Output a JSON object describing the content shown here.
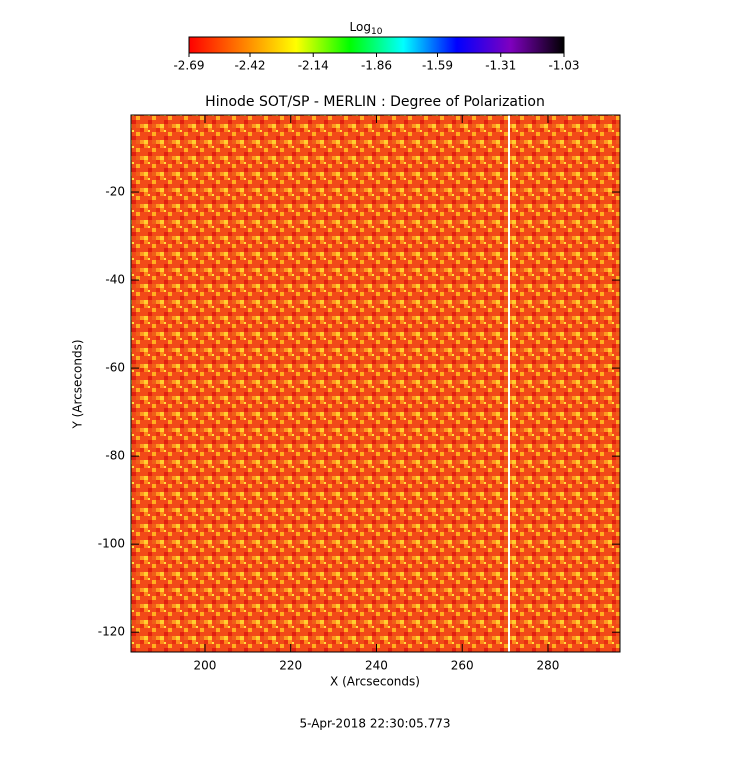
{
  "chart_data": {
    "type": "heatmap",
    "title": "Hinode SOT/SP - MERLIN : Degree of Polarization",
    "x_label": "X (Arcseconds)",
    "y_label": "Y (Arcseconds)",
    "xlim": [
      182.74,
      296.8
    ],
    "ylim": [
      -124.5,
      -2.5
    ],
    "xticks": [
      200,
      220,
      240,
      260,
      280
    ],
    "yticks": [
      -20,
      -40,
      -60,
      -80,
      -100,
      -120
    ],
    "colorbar_label": "Log",
    "colorbar_label_sub": "10",
    "colorbar_lim": [
      -2.69,
      -1.03
    ],
    "colorbar_ticks": [
      -2.69,
      -2.42,
      -2.14,
      -1.86,
      -1.59,
      -1.31,
      -1.03
    ],
    "colormap": [
      "#ff0000",
      "#ff7f00",
      "#ffff00",
      "#00ff00",
      "#00ffff",
      "#0000ff",
      "#7f00bf",
      "#000000"
    ],
    "timestamp": "5-Apr-2018 22:30:05.773"
  }
}
